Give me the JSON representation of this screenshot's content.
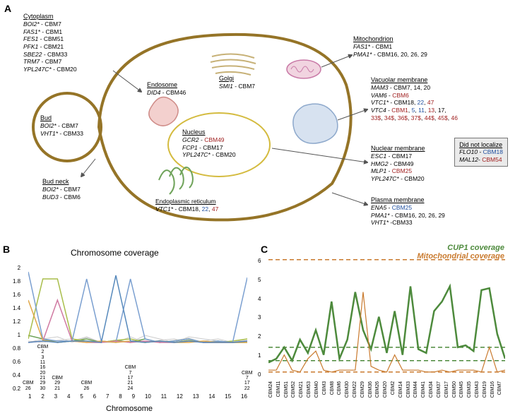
{
  "panelA": {
    "label": "A",
    "cell_outline_color": "#957427",
    "regions": {
      "cytoplasm": {
        "title": "Cytoplasm",
        "items": [
          {
            "gene": "BOI2*",
            "cbm": " - CBM7"
          },
          {
            "gene": "FAS1*",
            "cbm": " - CBM1"
          },
          {
            "gene": "FES1",
            "cbm": " - CBM51"
          },
          {
            "gene": "PFK1",
            "cbm": " - CBM21"
          },
          {
            "gene": "SBE22",
            "cbm": " - CBM33"
          },
          {
            "gene": "TRM7",
            "cbm": " - CBM7"
          },
          {
            "gene": "YPL247C*",
            "cbm": " - CBM20"
          }
        ]
      },
      "bud": {
        "title": "Bud",
        "items": [
          {
            "gene": "BOI2*",
            "cbm": " - CBM7"
          },
          {
            "gene": "VHT1*",
            "cbm": " - CBM33"
          }
        ]
      },
      "budneck": {
        "title": "Bud neck",
        "items": [
          {
            "gene": "BOI2*",
            "cbm": " - CBM7"
          },
          {
            "gene": "BUD3",
            "cbm": " - CBM6"
          }
        ]
      },
      "endosome": {
        "title": "Endosome",
        "items": [
          {
            "gene": "DID4",
            "cbm": " - CBM46"
          }
        ]
      },
      "golgi": {
        "title": "Golgi",
        "items": [
          {
            "gene": "SMI1",
            "cbm": " - CBM7"
          }
        ]
      },
      "nucleus": {
        "title": "Nucleus",
        "items": [
          {
            "gene": "GCR2",
            "cbm": " - ",
            "cbm_colored": "CBM49",
            "color": "red"
          },
          {
            "gene": "FCP1",
            "cbm": " - CBM17"
          },
          {
            "gene": "YPL247C*",
            "cbm": " - CBM20"
          }
        ]
      },
      "er": {
        "title": "Endoplasmic reticulum",
        "items": [
          {
            "gene": "VTC1*",
            "cbm": " - CBM18, ",
            "extra": [
              {
                "t": "22",
                "c": "blue"
              },
              {
                "t": ", "
              },
              {
                "t": "47",
                "c": "red"
              }
            ]
          }
        ]
      },
      "mito": {
        "title": "Mitochondrion",
        "items": [
          {
            "gene": "FAS1*",
            "cbm": " - CBM1"
          },
          {
            "gene": "PMA1*",
            "cbm": " - CBM16, 20, 26, 29"
          }
        ]
      },
      "vacmem": {
        "title": "Vacuolar membrane",
        "items": [
          {
            "gene": "MAM3",
            "cbm": " - CBM7, 14, 20"
          },
          {
            "gene": "VAM6",
            "cbm": " - ",
            "cbm_colored": "CBM6",
            "color": "red"
          },
          {
            "gene": "VTC1*",
            "cbm": " - CBM18, ",
            "extra": [
              {
                "t": "22",
                "c": "blue"
              },
              {
                "t": ", "
              },
              {
                "t": "47",
                "c": "red"
              }
            ]
          },
          {
            "gene": "VTC4",
            "cbm": " - ",
            "extra": [
              {
                "t": "CBM1",
                "c": "red"
              },
              {
                "t": ", "
              },
              {
                "t": "5",
                "c": "blue"
              },
              {
                "t": ", "
              },
              {
                "t": "11",
                "c": "blue"
              },
              {
                "t": ", "
              },
              {
                "t": "13",
                "c": "red"
              },
              {
                "t": ", 17,"
              }
            ]
          },
          {
            "gene": "",
            "cbm": "",
            "extra": [
              {
                "t": "33$",
                "c": "red"
              },
              {
                "t": ", "
              },
              {
                "t": "34$",
                "c": "red"
              },
              {
                "t": ",  "
              },
              {
                "t": "36$",
                "c": "red"
              },
              {
                "t": ", "
              },
              {
                "t": "37$",
                "c": "red"
              },
              {
                "t": ", "
              },
              {
                "t": "44$",
                "c": "red"
              },
              {
                "t": ", "
              },
              {
                "t": "45$",
                "c": "red"
              },
              {
                "t": ", "
              },
              {
                "t": "46",
                "c": "red"
              }
            ]
          }
        ]
      },
      "nucmem": {
        "title": "Nuclear membrane",
        "items": [
          {
            "gene": "ESC1",
            "cbm": " - CBM17"
          },
          {
            "gene": "HMG2",
            "cbm": " - CBM49"
          },
          {
            "gene": "MLP1",
            "cbm": " - ",
            "cbm_colored": "CBM25",
            "color": "red"
          },
          {
            "gene": "YPL247C*",
            "cbm": " - CBM20"
          }
        ]
      },
      "plasmem": {
        "title": "Plasma membrane",
        "items": [
          {
            "gene": "ENA5",
            "cbm": " - ",
            "cbm_colored": "CBM25",
            "color": "blue"
          },
          {
            "gene": "PMA1*",
            "cbm": " - CBM16, 20, 26, 29"
          },
          {
            "gene": "VHT1*",
            "cbm": " -CBM33"
          }
        ]
      }
    },
    "nolocalize": {
      "title": "Did not localize",
      "items": [
        {
          "gene": "FLO10",
          "cbm": " - ",
          "cbm_colored": "CBM18",
          "color": "blue"
        },
        {
          "gene": "MAL12",
          "cbm": "- ",
          "cbm_colored": "CBM54",
          "color": "red"
        }
      ]
    },
    "organelle_colors": {
      "endosome_fill": "#f3d0ce",
      "endosome_stroke": "#cf8c88",
      "golgi": "#d9c9a0",
      "nucleus_stroke": "#d4bb3f",
      "er_fill": "#b3d39e",
      "er_stroke": "#6fa35a",
      "mito_fill": "#f1d4e0",
      "mito_stroke": "#c97aa7",
      "vac_fill": "#d7e2f0",
      "vac_stroke": "#8ea9cc"
    }
  },
  "panelB": {
    "label": "B",
    "title": "Chromosome coverage",
    "xlabel": "Chromosome",
    "xticks": [
      "1",
      "2",
      "3",
      "4",
      "5",
      "6",
      "7",
      "8",
      "9",
      "10",
      "11",
      "12",
      "13",
      "14",
      "15",
      "16"
    ],
    "yticks": [
      "2",
      "1.8",
      "1.6",
      "1.4",
      "1.2",
      "1",
      "0.8",
      "0.6",
      "0.4",
      "0.2"
    ],
    "ylim": [
      0.2,
      2.0
    ],
    "grey_series": [
      [
        0.9,
        0.95,
        0.9,
        0.92,
        0.98,
        0.9,
        0.93,
        0.9,
        1.0,
        0.95,
        0.9,
        0.98,
        0.95,
        0.92,
        0.9,
        0.93
      ],
      [
        0.92,
        0.9,
        0.93,
        0.95,
        0.9,
        0.92,
        0.9,
        0.92,
        0.95,
        0.9,
        0.93,
        0.96,
        0.9,
        0.9,
        0.92,
        0.9
      ],
      [
        1.0,
        0.95,
        0.98,
        0.9,
        0.97,
        0.9,
        0.9,
        0.98,
        0.9,
        0.93,
        0.95,
        0.9,
        0.92,
        0.95,
        0.9,
        0.95
      ]
    ],
    "grey_color": "#cccccc",
    "color_series": [
      {
        "color": "#6fa35a",
        "vals": [
          1.0,
          0.95,
          0.9,
          0.92,
          0.95,
          0.9,
          0.93,
          0.9,
          0.95,
          0.9,
          0.92,
          0.95,
          0.9,
          0.92,
          0.9,
          0.9
        ]
      },
      {
        "color": "#a8bd4a",
        "vals": [
          0.95,
          1.8,
          1.8,
          0.95,
          0.92,
          0.9,
          0.93,
          0.95,
          0.9,
          0.92,
          0.9,
          0.93,
          0.9,
          0.9,
          0.92,
          0.95
        ]
      },
      {
        "color": "#7a9fd0",
        "vals": [
          1.9,
          0.95,
          0.92,
          0.92,
          1.8,
          0.92,
          0.9,
          1.8,
          0.95,
          0.9,
          0.92,
          0.95,
          0.9,
          0.92,
          0.9,
          1.82
        ]
      },
      {
        "color": "#d07aa2",
        "vals": [
          0.9,
          0.92,
          1.5,
          0.92,
          0.9,
          0.9,
          0.92,
          0.9,
          0.92,
          0.9,
          0.9,
          0.92,
          0.9,
          0.9,
          0.9,
          0.92
        ]
      },
      {
        "color": "#e0a84b",
        "vals": [
          1.5,
          0.93,
          0.9,
          0.92,
          0.9,
          0.92,
          0.9,
          0.92,
          0.9,
          0.92,
          0.9,
          0.9,
          0.92,
          0.9,
          0.9,
          0.9
        ]
      },
      {
        "color": "#5588bb",
        "vals": [
          0.9,
          0.92,
          0.9,
          0.92,
          0.92,
          0.9,
          1.85,
          0.92,
          0.9,
          0.92,
          0.9,
          0.92,
          0.9,
          0.9,
          0.9,
          0.92
        ]
      }
    ],
    "cbm_annotations": [
      {
        "x": 1,
        "labels": [
          "CBM",
          "26"
        ]
      },
      {
        "x": 2,
        "labels": [
          "CBM",
          "2",
          "3",
          "11",
          "16",
          "20",
          "21",
          "29",
          "30"
        ]
      },
      {
        "x": 3,
        "labels": [
          "CBM",
          "29",
          "21"
        ]
      },
      {
        "x": 5,
        "labels": [
          "CBM",
          "26"
        ]
      },
      {
        "x": 8,
        "labels": [
          "CBM",
          "7",
          "17",
          "21",
          "24"
        ]
      },
      {
        "x": 16,
        "labels": [
          "CBM",
          "7",
          "17",
          "22"
        ]
      }
    ]
  },
  "panelC": {
    "label": "C",
    "legend": [
      {
        "text": "CUP1 coverage",
        "color": "#4d8a3c"
      },
      {
        "text": "Mitochondrial coverage",
        "color": "#c97a2e"
      }
    ],
    "yticks": [
      "6",
      "5",
      "4",
      "3",
      "2",
      "1",
      "0"
    ],
    "ylim": [
      0,
      6.3
    ],
    "xcats": [
      "CBM24",
      "CBM11",
      "CBM51",
      "CBM52",
      "CBM21",
      "CBM53",
      "CBM40",
      "CBM3",
      "CBM8",
      "CBM6",
      "CBM30",
      "CBM22",
      "CBM29",
      "CBM36",
      "CBM26",
      "CBM20",
      "CBM2",
      "CBM14",
      "CBM33",
      "CBM44",
      "CBM41",
      "CBM34",
      "CBM37",
      "CBM17",
      "CBM50",
      "CBM45",
      "CBM35",
      "CBM43",
      "CBM19",
      "CBM16",
      "CBM7"
    ],
    "cup1": [
      0.8,
      1.0,
      1.6,
      0.9,
      2.0,
      1.3,
      2.5,
      1.2,
      4.0,
      1.0,
      2.0,
      4.5,
      2.5,
      1.5,
      3.2,
      1.3,
      3.5,
      1.2,
      4.8,
      1.5,
      1.3,
      3.5,
      4.0,
      4.8,
      1.6,
      1.7,
      1.4,
      4.6,
      4.7,
      2.3,
      1.0
    ],
    "mito": [
      0.4,
      0.4,
      1.2,
      0.4,
      0.3,
      1.0,
      1.4,
      0.4,
      0.3,
      0.4,
      0.4,
      0.4,
      4.5,
      0.6,
      0.4,
      0.3,
      1.2,
      0.4,
      0.4,
      0.4,
      0.3,
      0.3,
      0.4,
      0.3,
      0.4,
      0.4,
      0.4,
      0.3,
      1.6,
      0.3,
      0.4
    ],
    "dashed_green": [
      0.9,
      1.6
    ],
    "dashed_orange": [
      0.3,
      6.2
    ],
    "line_colors": {
      "cup1": "#4d8a3c",
      "mito": "#c97a2e"
    },
    "cup1_width": 2.5,
    "mito_width": 1.2
  }
}
